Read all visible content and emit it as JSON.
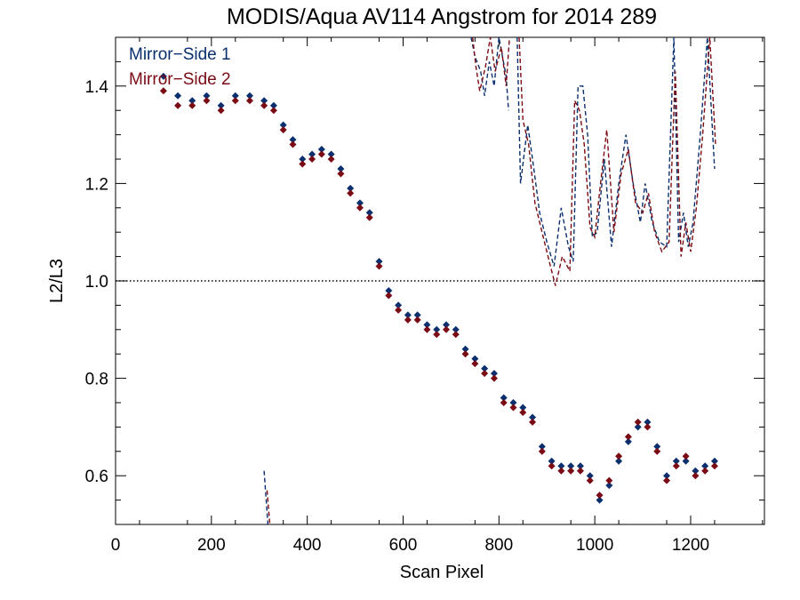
{
  "chart_data": {
    "type": "scatter",
    "title": "MODIS/Aqua AV114 Angstrom for 2014 289",
    "xlabel": "Scan Pixel",
    "ylabel": "L2/L3",
    "xlim": [
      0,
      1354
    ],
    "ylim": [
      0.5,
      1.5
    ],
    "xticks": [
      0,
      200,
      400,
      600,
      800,
      1000,
      1200
    ],
    "xtick_labels": [
      "0",
      "200",
      "400",
      "600",
      "800",
      "1000",
      "1200"
    ],
    "yticks": [
      0.6,
      0.8,
      1.0,
      1.2,
      1.4
    ],
    "ytick_labels": [
      "0.6",
      "0.8",
      "1.0",
      "1.2",
      "1.4"
    ],
    "reference_line": {
      "y": 1.0,
      "style": "dotted",
      "color": "#000000"
    },
    "legend": {
      "position": "top-left"
    },
    "colors": {
      "ms1": "#0a2f6e",
      "ms2": "#7a0a14"
    },
    "series": [
      {
        "name": "Mirror−Side 1",
        "marker": "diamond",
        "color": "#0a2f6e",
        "x": [
          100,
          130,
          160,
          190,
          220,
          250,
          280,
          310,
          330,
          350,
          370,
          390,
          410,
          430,
          450,
          470,
          490,
          510,
          530,
          550,
          570,
          590,
          610,
          630,
          650,
          670,
          690,
          710,
          730,
          750,
          770,
          790,
          810,
          830,
          850,
          870,
          890,
          910,
          930,
          950,
          970,
          990,
          1010,
          1030,
          1050,
          1070,
          1090,
          1110,
          1130,
          1150,
          1170,
          1190,
          1210,
          1230,
          1250
        ],
        "y": [
          1.42,
          1.38,
          1.37,
          1.38,
          1.36,
          1.38,
          1.38,
          1.37,
          1.36,
          1.32,
          1.29,
          1.25,
          1.26,
          1.27,
          1.26,
          1.23,
          1.19,
          1.16,
          1.14,
          1.04,
          0.98,
          0.95,
          0.93,
          0.93,
          0.91,
          0.9,
          0.91,
          0.9,
          0.86,
          0.84,
          0.82,
          0.81,
          0.76,
          0.75,
          0.74,
          0.72,
          0.66,
          0.63,
          0.62,
          0.62,
          0.62,
          0.6,
          0.55,
          0.58,
          0.63,
          0.67,
          0.7,
          0.71,
          0.66,
          0.6,
          0.63,
          0.63,
          0.61,
          0.62,
          0.63
        ]
      },
      {
        "name": "Mirror−Side 2",
        "marker": "diamond",
        "color": "#7a0a14",
        "x": [
          100,
          130,
          160,
          190,
          220,
          250,
          280,
          310,
          330,
          350,
          370,
          390,
          410,
          430,
          450,
          470,
          490,
          510,
          530,
          550,
          570,
          590,
          610,
          630,
          650,
          670,
          690,
          710,
          730,
          750,
          770,
          790,
          810,
          830,
          850,
          870,
          890,
          910,
          930,
          950,
          970,
          990,
          1010,
          1030,
          1050,
          1070,
          1090,
          1110,
          1130,
          1150,
          1170,
          1190,
          1210,
          1230,
          1250
        ],
        "y": [
          1.39,
          1.36,
          1.36,
          1.37,
          1.35,
          1.37,
          1.37,
          1.36,
          1.35,
          1.31,
          1.28,
          1.24,
          1.25,
          1.26,
          1.25,
          1.22,
          1.18,
          1.15,
          1.13,
          1.03,
          0.97,
          0.94,
          0.92,
          0.92,
          0.9,
          0.89,
          0.9,
          0.89,
          0.85,
          0.83,
          0.81,
          0.8,
          0.75,
          0.74,
          0.73,
          0.71,
          0.65,
          0.62,
          0.61,
          0.61,
          0.61,
          0.59,
          0.56,
          0.59,
          0.64,
          0.68,
          0.71,
          0.7,
          0.65,
          0.59,
          0.62,
          0.64,
          0.6,
          0.61,
          0.62
        ]
      }
    ],
    "dashed_series": [
      {
        "name": "Mirror−Side 1",
        "color": "#0a2f6e",
        "segments": [
          {
            "x": [
              310,
              318
            ],
            "y": [
              0.61,
              0.5
            ]
          },
          {
            "x": [
              742,
              750,
              762,
              770,
              780,
              790,
              800,
              815,
              820
            ],
            "y": [
              1.5,
              1.46,
              1.43,
              1.38,
              1.45,
              1.4,
              1.5,
              1.42,
              1.35
            ]
          },
          {
            "x": [
              838,
              845,
              860,
              870,
              885,
              900,
              915,
              930,
              945,
              955,
              965,
              975,
              985,
              995,
              1005,
              1020,
              1035,
              1050,
              1065,
              1080,
              1095,
              1105,
              1120,
              1135,
              1150,
              1165,
              1175,
              1185,
              1195,
              1205,
              1220,
              1235,
              1250
            ],
            "y": [
              1.5,
              1.2,
              1.32,
              1.25,
              1.14,
              1.08,
              1.03,
              1.15,
              1.07,
              1.04,
              1.4,
              1.4,
              1.3,
              1.09,
              1.1,
              1.25,
              1.07,
              1.2,
              1.3,
              1.2,
              1.12,
              1.2,
              1.12,
              1.08,
              1.07,
              1.5,
              1.08,
              1.14,
              1.07,
              1.12,
              1.3,
              1.5,
              1.23
            ]
          }
        ]
      },
      {
        "name": "Mirror−Side 2",
        "color": "#7a0a14",
        "segments": [
          {
            "x": [
              316,
              322
            ],
            "y": [
              0.57,
              0.5
            ]
          },
          {
            "x": [
              745,
              752,
              760,
              772,
              782,
              792,
              805,
              815,
              822
            ],
            "y": [
              1.5,
              1.44,
              1.39,
              1.44,
              1.5,
              1.43,
              1.48,
              1.4,
              1.5
            ]
          },
          {
            "x": [
              842,
              850,
              862,
              875,
              890,
              905,
              918,
              932,
              948,
              958,
              968,
              978,
              990,
              1000,
              1012,
              1025,
              1040,
              1055,
              1070,
              1085,
              1100,
              1112,
              1125,
              1140,
              1155,
              1168,
              1180,
              1190,
              1200,
              1212,
              1225,
              1240,
              1252
            ],
            "y": [
              1.5,
              1.33,
              1.28,
              1.16,
              1.1,
              1.04,
              0.99,
              1.05,
              1.02,
              1.37,
              1.35,
              1.28,
              1.11,
              1.09,
              1.2,
              1.31,
              1.1,
              1.22,
              1.27,
              1.16,
              1.14,
              1.18,
              1.1,
              1.06,
              1.08,
              1.43,
              1.05,
              1.12,
              1.06,
              1.15,
              1.3,
              1.5,
              1.28
            ]
          }
        ]
      }
    ]
  }
}
